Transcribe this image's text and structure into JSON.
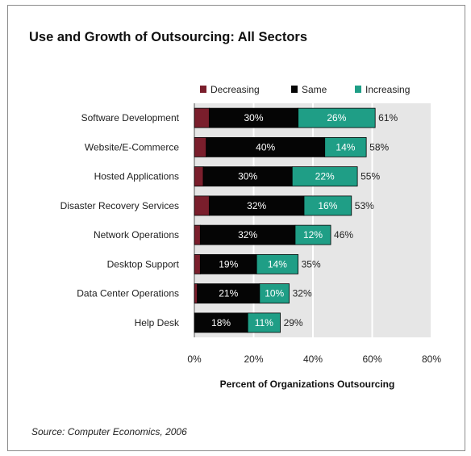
{
  "colors": {
    "decreasing": "#7a1e2c",
    "same": "#050505",
    "increasing": "#1f9e86",
    "plot_bg": "#e6e6e6"
  },
  "source": "Source: Computer Economics, 2006",
  "chart_data": {
    "type": "bar",
    "orientation": "horizontal",
    "stacked": true,
    "title": "Use and Growth of Outsourcing: All Sectors",
    "xlabel": "Percent of Organizations Outsourcing",
    "ylabel": "",
    "xlim": [
      0,
      80
    ],
    "x_ticks": [
      "0%",
      "20%",
      "40%",
      "60%",
      "80%"
    ],
    "grid": true,
    "legend_position": "top",
    "categories": [
      "Software Development",
      "Website/E-Commerce",
      "Hosted Applications",
      "Disaster Recovery Services",
      "Network Operations",
      "Desktop Support",
      "Data Center Operations",
      "Help Desk"
    ],
    "series": [
      {
        "name": "Decreasing",
        "values": [
          5,
          4,
          3,
          5,
          2,
          2,
          1,
          0
        ]
      },
      {
        "name": "Same",
        "values": [
          30,
          40,
          30,
          32,
          32,
          19,
          21,
          18
        ],
        "labels": [
          "30%",
          "40%",
          "30%",
          "32%",
          "32%",
          "19%",
          "21%",
          "18%"
        ]
      },
      {
        "name": "Increasing",
        "values": [
          26,
          14,
          22,
          16,
          12,
          14,
          10,
          11
        ],
        "labels": [
          "26%",
          "14%",
          "22%",
          "16%",
          "12%",
          "14%",
          "10%",
          "11%"
        ]
      }
    ],
    "totals": [
      "61%",
      "58%",
      "55%",
      "53%",
      "46%",
      "35%",
      "32%",
      "29%"
    ]
  }
}
